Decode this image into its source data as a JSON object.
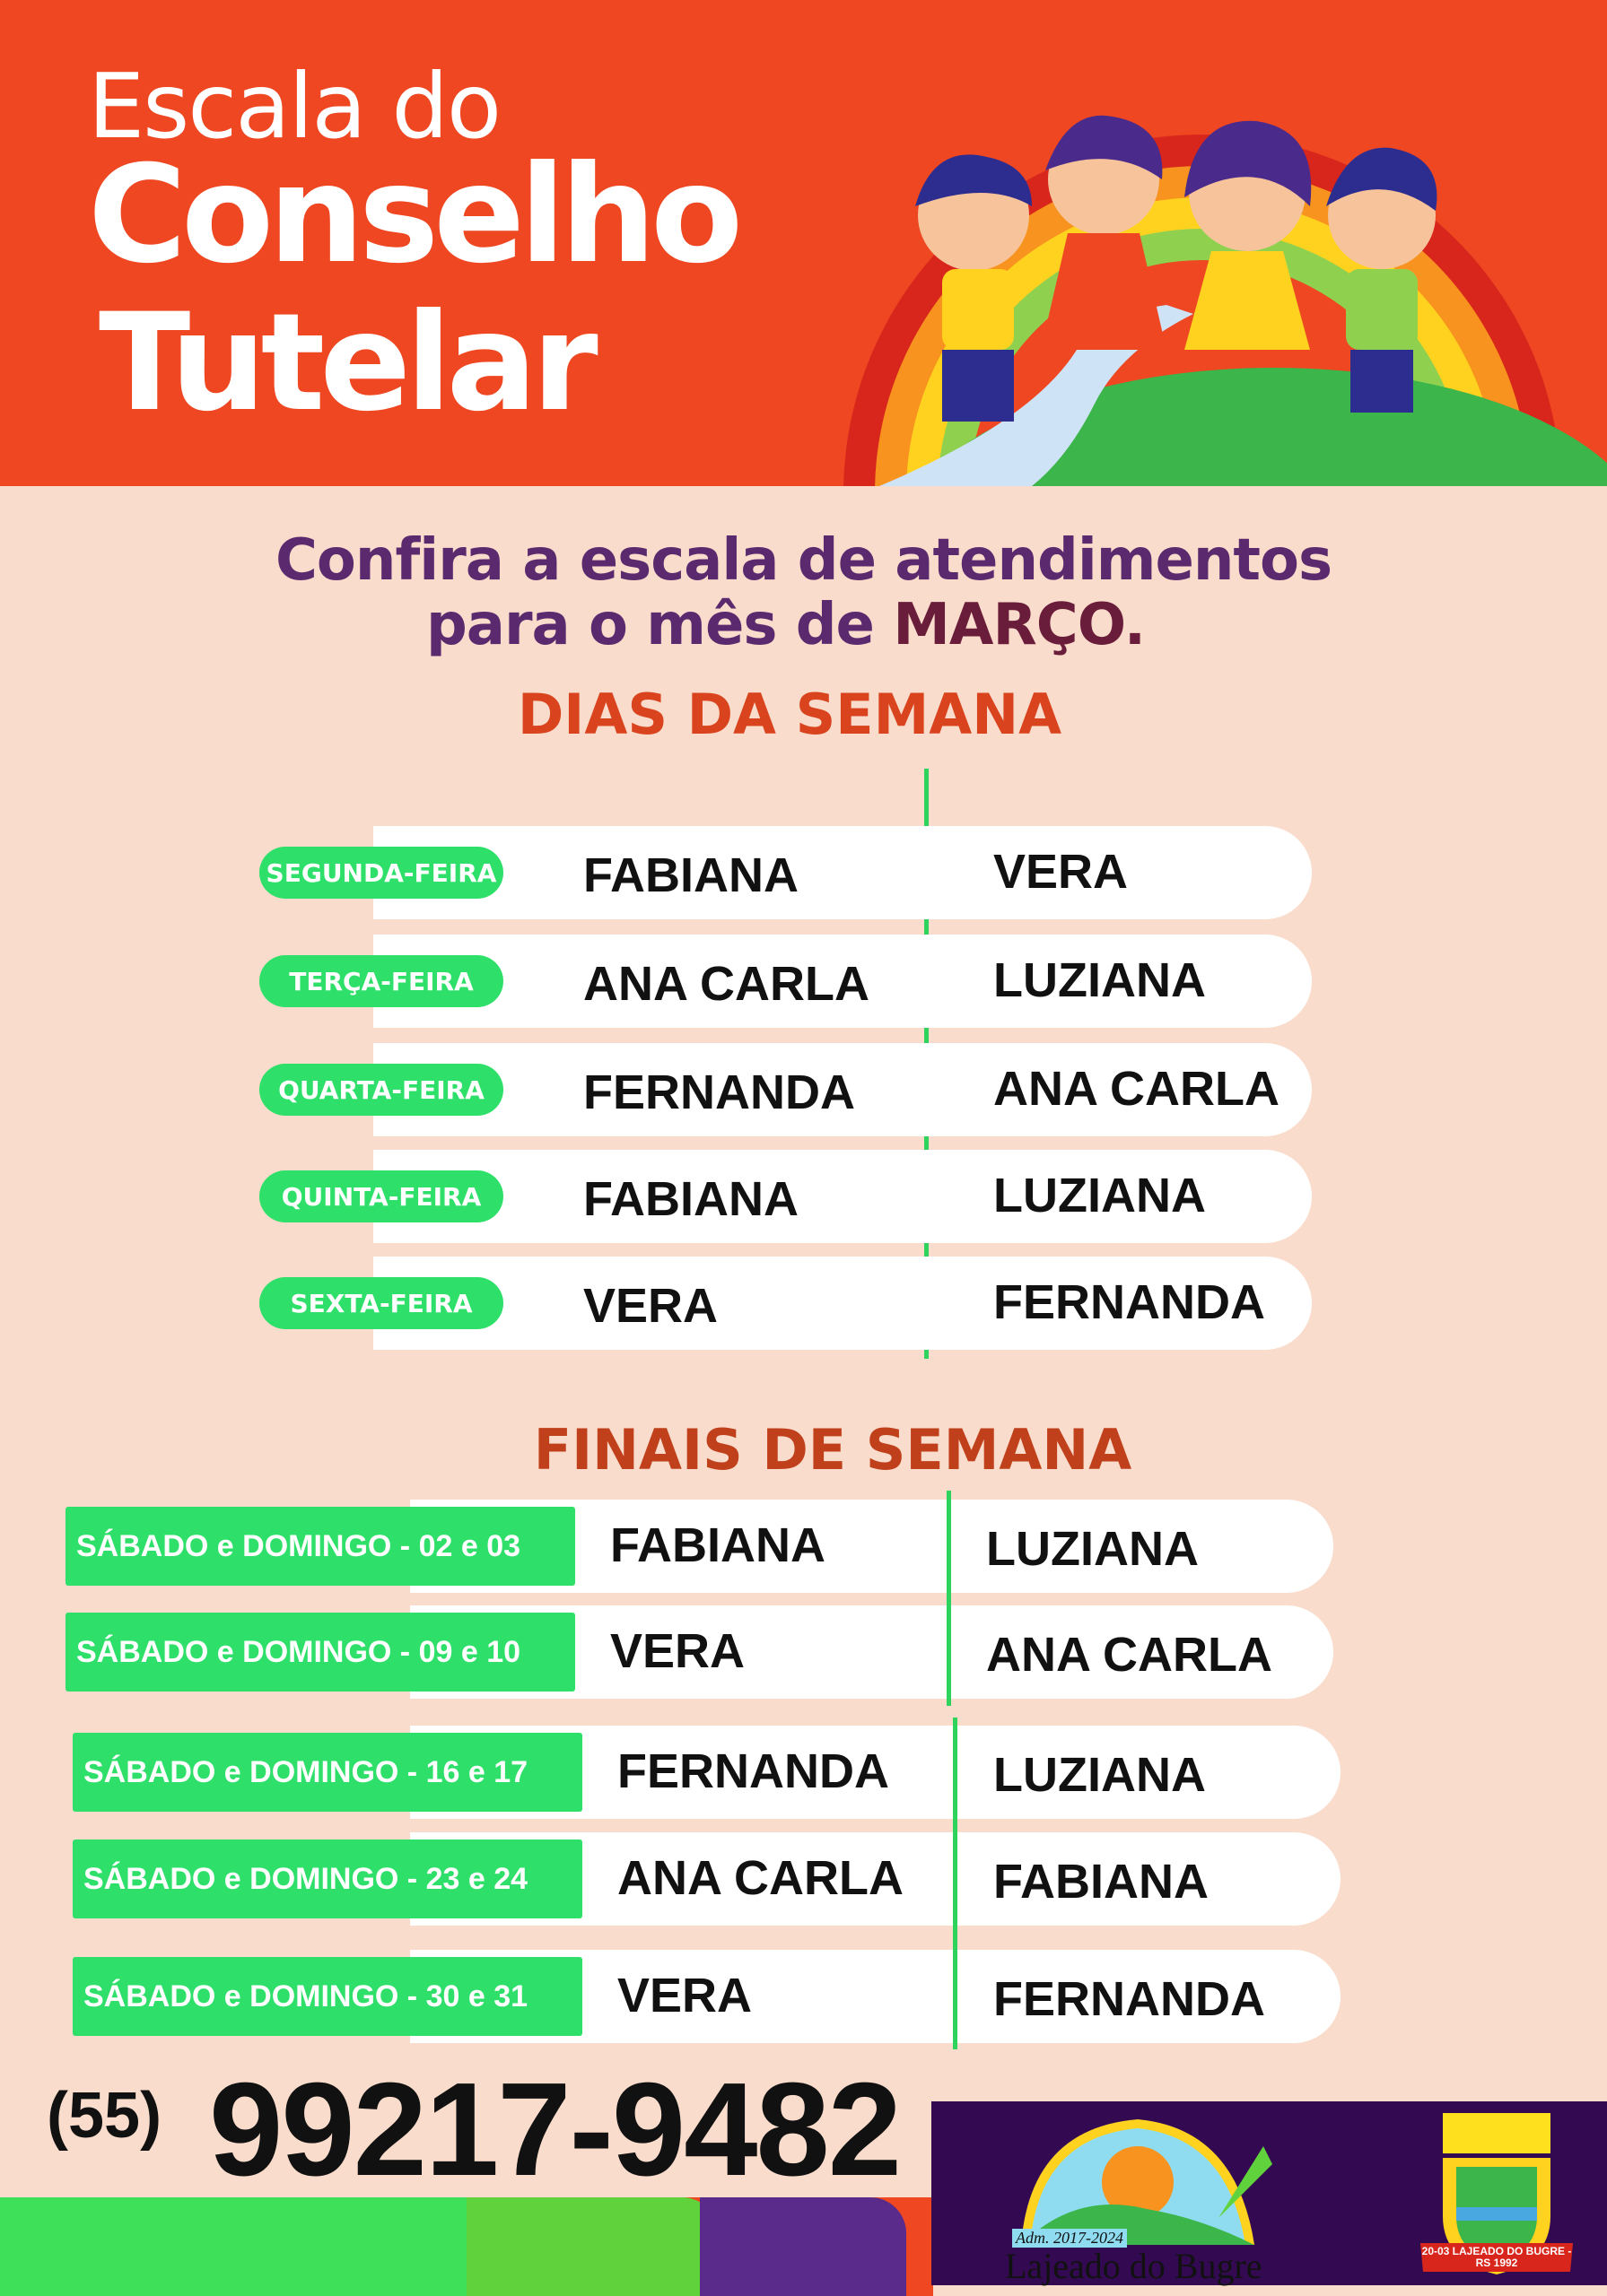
{
  "header": {
    "line1": "Escala do",
    "line2": "Conselho",
    "line3": "Tutelar"
  },
  "intro": {
    "line1": "Confira a escala de atendimentos",
    "line2_prefix": "para o mês de ",
    "month": "MARÇO."
  },
  "weekdays": {
    "title": "DIAS DA SEMANA",
    "rows": [
      {
        "day": "SEGUNDA-FEIRA",
        "first": "FABIANA",
        "second": "VERA"
      },
      {
        "day": "TERÇA-FEIRA",
        "first": "ANA CARLA",
        "second": "LUZIANA"
      },
      {
        "day": "QUARTA-FEIRA",
        "first": "FERNANDA",
        "second": "ANA CARLA"
      },
      {
        "day": "QUINTA-FEIRA",
        "first": "FABIANA",
        "second": "LUZIANA"
      },
      {
        "day": "SEXTA-FEIRA",
        "first": "VERA",
        "second": "FERNANDA"
      }
    ]
  },
  "weekends": {
    "title": "FINAIS DE SEMANA",
    "rows": [
      {
        "label": "SÁBADO e DOMINGO - 02 e 03",
        "first": "FABIANA",
        "second": "LUZIANA"
      },
      {
        "label": "SÁBADO e DOMINGO - 09 e 10",
        "first": "VERA",
        "second": "ANA CARLA"
      },
      {
        "label": "SÁBADO e DOMINGO - 16 e 17",
        "first": "FERNANDA",
        "second": "LUZIANA"
      },
      {
        "label": "SÁBADO e DOMINGO - 23 e 24",
        "first": "ANA CARLA",
        "second": "FABIANA"
      },
      {
        "label": "SÁBADO e DOMINGO - 30 e 31",
        "first": "VERA",
        "second": "FERNANDA"
      }
    ]
  },
  "contact": {
    "area": "(55)",
    "phone": "99217-9482"
  },
  "logos": {
    "admin": "Adm. 2017-2024",
    "city": "Lajeado do Bugre",
    "crest": "20-03 LAJEADO DO BUGRE - RS 1992"
  },
  "colors": {
    "header": "#ee4722",
    "background": "#f9dccb",
    "green": "#2ee06a",
    "purple": "#5b2a6e",
    "panel": "#330a52"
  }
}
